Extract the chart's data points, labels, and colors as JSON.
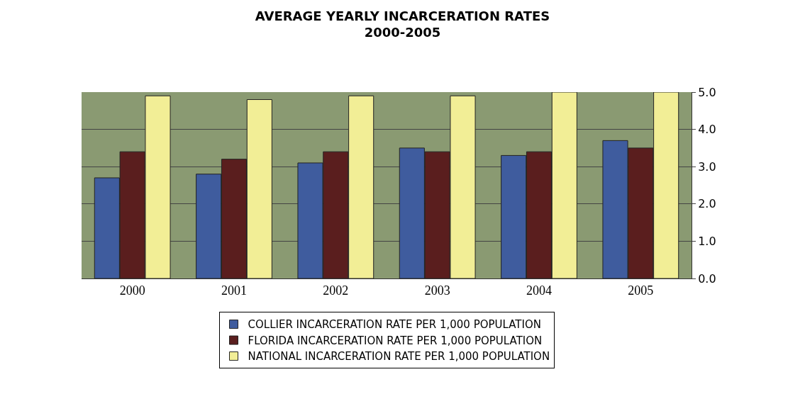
{
  "chart_data": {
    "type": "bar",
    "title": "AVERAGE YEARLY INCARCERATION RATES\n2000-2005",
    "categories": [
      "2000",
      "2001",
      "2002",
      "2003",
      "2004",
      "2005"
    ],
    "series": [
      {
        "name": "COLLIER INCARCERATION RATE PER 1,000 POPULATION",
        "color": "#3f5c9e",
        "values": [
          2.7,
          2.8,
          3.1,
          3.5,
          3.3,
          3.7
        ]
      },
      {
        "name": "FLORIDA INCARCERATION RATE PER 1,000 POPULATION",
        "color": "#5a1e1e",
        "values": [
          3.4,
          3.2,
          3.4,
          3.4,
          3.4,
          3.5
        ]
      },
      {
        "name": "NATIONAL INCARCERATION RATE PER 1,000 POPULATION",
        "color": "#f2ee96",
        "values": [
          4.9,
          4.8,
          4.9,
          4.9,
          5.0,
          5.0
        ]
      }
    ],
    "ylim": [
      0,
      5
    ],
    "yticks": [
      {
        "value": 0,
        "label": "0.0"
      },
      {
        "value": 1,
        "label": "1.0"
      },
      {
        "value": 2,
        "label": "2.0"
      },
      {
        "value": 3,
        "label": "3.0"
      },
      {
        "value": 4,
        "label": "4.0"
      },
      {
        "value": 5,
        "label": "5.0"
      }
    ],
    "grid": "y",
    "legend": "bottom"
  }
}
